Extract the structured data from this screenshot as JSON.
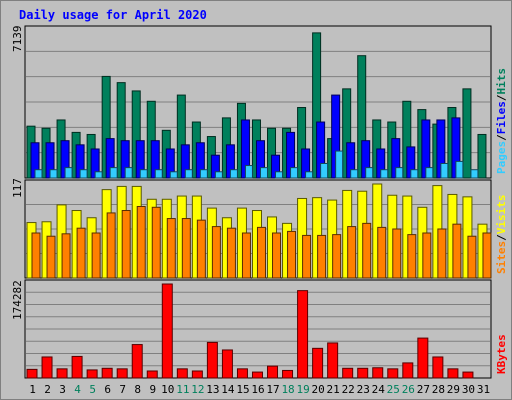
{
  "chart_data": {
    "type": "bar",
    "title": "Daily usage for April 2020",
    "days": [
      "1",
      "2",
      "3",
      "4",
      "5",
      "6",
      "7",
      "8",
      "9",
      "10",
      "11",
      "12",
      "13",
      "14",
      "15",
      "16",
      "17",
      "18",
      "19",
      "20",
      "21",
      "22",
      "23",
      "24",
      "25",
      "26",
      "27",
      "28",
      "29",
      "30",
      "31"
    ],
    "weekend_days": [
      "4",
      "5",
      "11",
      "12",
      "18",
      "19",
      "25",
      "26"
    ],
    "panels": [
      {
        "name": "traffic",
        "max_label": "7139",
        "ylim": [
          0,
          7139
        ],
        "legend": [
          "Pages",
          "Files",
          "Hits"
        ],
        "series": [
          {
            "name": "Hits",
            "color": "#00805c",
            "values": [
              2500,
              2400,
              2800,
              2200,
              2100,
              4900,
              4600,
              4200,
              3700,
              2300,
              4000,
              2700,
              2000,
              2900,
              3600,
              2800,
              2400,
              2400,
              3400,
              7000,
              1900,
              4300,
              5900,
              2800,
              2700,
              3700,
              3300,
              2600,
              3400,
              4300,
              2100
            ]
          },
          {
            "name": "Files",
            "color": "#0000ff",
            "values": [
              1700,
              1700,
              1800,
              1600,
              1400,
              1900,
              1800,
              1800,
              1800,
              1400,
              1600,
              1700,
              1100,
              1600,
              2800,
              1800,
              1100,
              2200,
              1400,
              2700,
              4000,
              1700,
              1800,
              1400,
              1900,
              1500,
              2800,
              2800,
              2900,
              0,
              0
            ]
          },
          {
            "name": "Pages",
            "color": "#33ccff",
            "values": [
              400,
              400,
              500,
              400,
              300,
              500,
              500,
              400,
              400,
              300,
              400,
              400,
              300,
              400,
              600,
              500,
              300,
              500,
              300,
              700,
              1300,
              400,
              500,
              400,
              500,
              400,
              500,
              700,
              800,
              400,
              0
            ]
          }
        ]
      },
      {
        "name": "visitors",
        "max_label": "117",
        "ylim": [
          0,
          117
        ],
        "legend": [
          "Sites",
          "Visits"
        ],
        "series": [
          {
            "name": "Visits",
            "color": "#ffff00",
            "values": [
              69,
              70,
              91,
              84,
              75,
              110,
              114,
              114,
              98,
              98,
              102,
              102,
              87,
              75,
              87,
              84,
              76,
              68,
              99,
              100,
              97,
              109,
              108,
              117,
              103,
              102,
              88,
              115,
              104,
              101,
              67
            ]
          },
          {
            "name": "Sites",
            "color": "#ff8000",
            "values": [
              56,
              52,
              55,
              62,
              56,
              81,
              84,
              89,
              88,
              74,
              74,
              72,
              64,
              62,
              56,
              63,
              56,
              58,
              53,
              53,
              54,
              64,
              68,
              63,
              61,
              54,
              56,
              61,
              67,
              52,
              56
            ]
          }
        ]
      },
      {
        "name": "volume",
        "max_label": "174282",
        "ylim": [
          0,
          174282
        ],
        "legend": [
          "KBytes"
        ],
        "series": [
          {
            "name": "KBytes",
            "color": "#ff0000",
            "values": [
              16000,
              39000,
              17000,
              40000,
              15000,
              18000,
              17000,
              62000,
              13000,
              174282,
              17000,
              13000,
              66000,
              52000,
              17000,
              11000,
              22000,
              14000,
              162000,
              55000,
              65000,
              18000,
              18000,
              19000,
              17000,
              28000,
              74000,
              39000,
              17000,
              11000,
              0
            ]
          }
        ]
      }
    ],
    "colors": {
      "background": "#c0c0c0",
      "grid": "#808080",
      "title": "#0000ff",
      "day_label": "#000000",
      "weekend_label": "#00805c"
    }
  }
}
